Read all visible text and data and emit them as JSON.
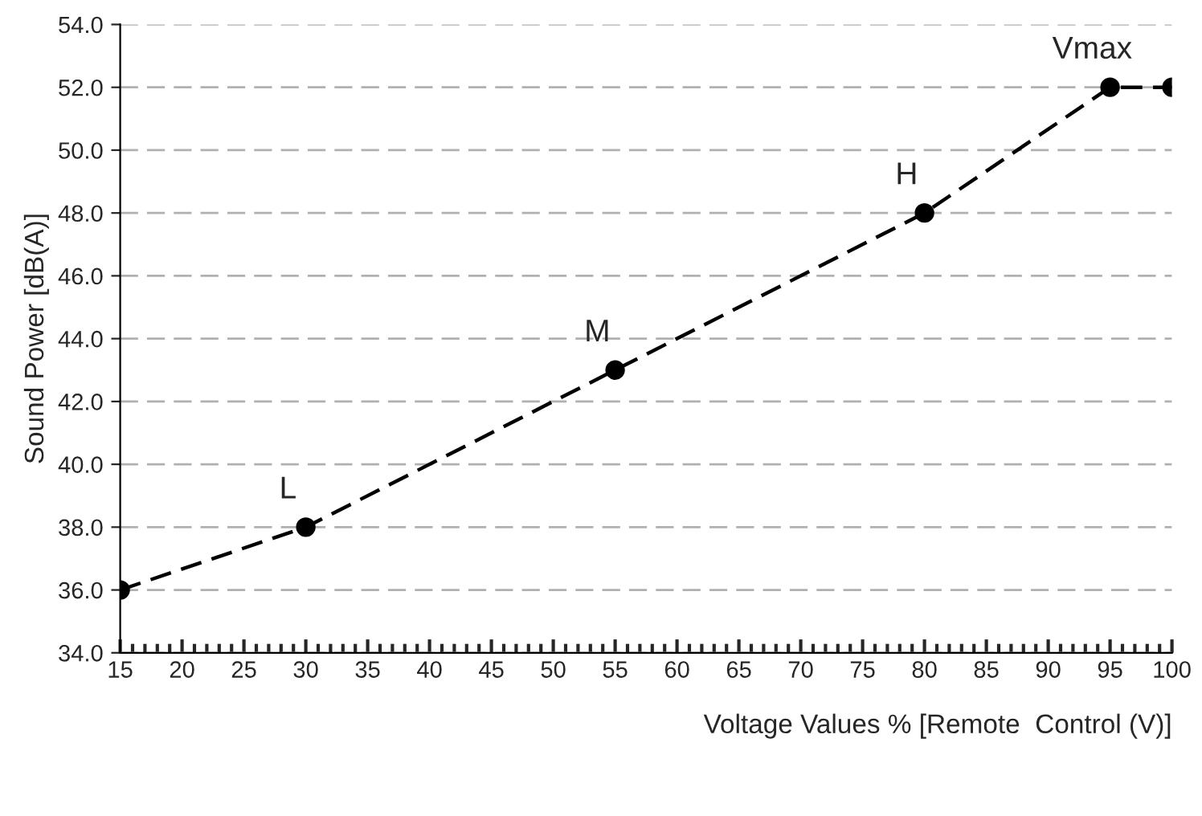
{
  "chart_data": {
    "type": "line",
    "xlabel": "Voltage Values % [Remote  Control (V)]",
    "ylabel": "Sound Power [dB(A)]",
    "x": [
      15,
      30,
      55,
      80,
      95,
      100
    ],
    "series": [
      {
        "color": "#000000",
        "values": [
          36,
          38,
          43,
          48,
          52,
          52
        ]
      }
    ],
    "xlim": [
      15,
      100
    ],
    "xticks": [
      15,
      20,
      25,
      30,
      35,
      40,
      45,
      50,
      55,
      60,
      65,
      70,
      75,
      80,
      85,
      90,
      95,
      100
    ],
    "ylim": [
      34,
      54
    ],
    "yticks": [
      {
        "value": 34,
        "label": "34.0"
      },
      {
        "value": 36,
        "label": "36.0"
      },
      {
        "value": 38,
        "label": "38.0"
      },
      {
        "value": 40,
        "label": "40.0"
      },
      {
        "value": 42,
        "label": "42.0"
      },
      {
        "value": 44,
        "label": "44.0"
      },
      {
        "value": 46,
        "label": "46.0"
      },
      {
        "value": 48,
        "label": "48.0"
      },
      {
        "value": 50,
        "label": "50.0"
      },
      {
        "value": 52,
        "label": "52.0"
      },
      {
        "value": 54,
        "label": "54.0"
      }
    ],
    "grid": "y",
    "marker": "circle",
    "line_style": "dashed",
    "annotations": [
      {
        "text": "L",
        "x": 30,
        "y": 38
      },
      {
        "text": "M",
        "x": 55,
        "y": 43
      },
      {
        "text": "H",
        "x": 80,
        "y": 48
      },
      {
        "text": "Vmax",
        "x": 95,
        "y": 52
      }
    ]
  }
}
